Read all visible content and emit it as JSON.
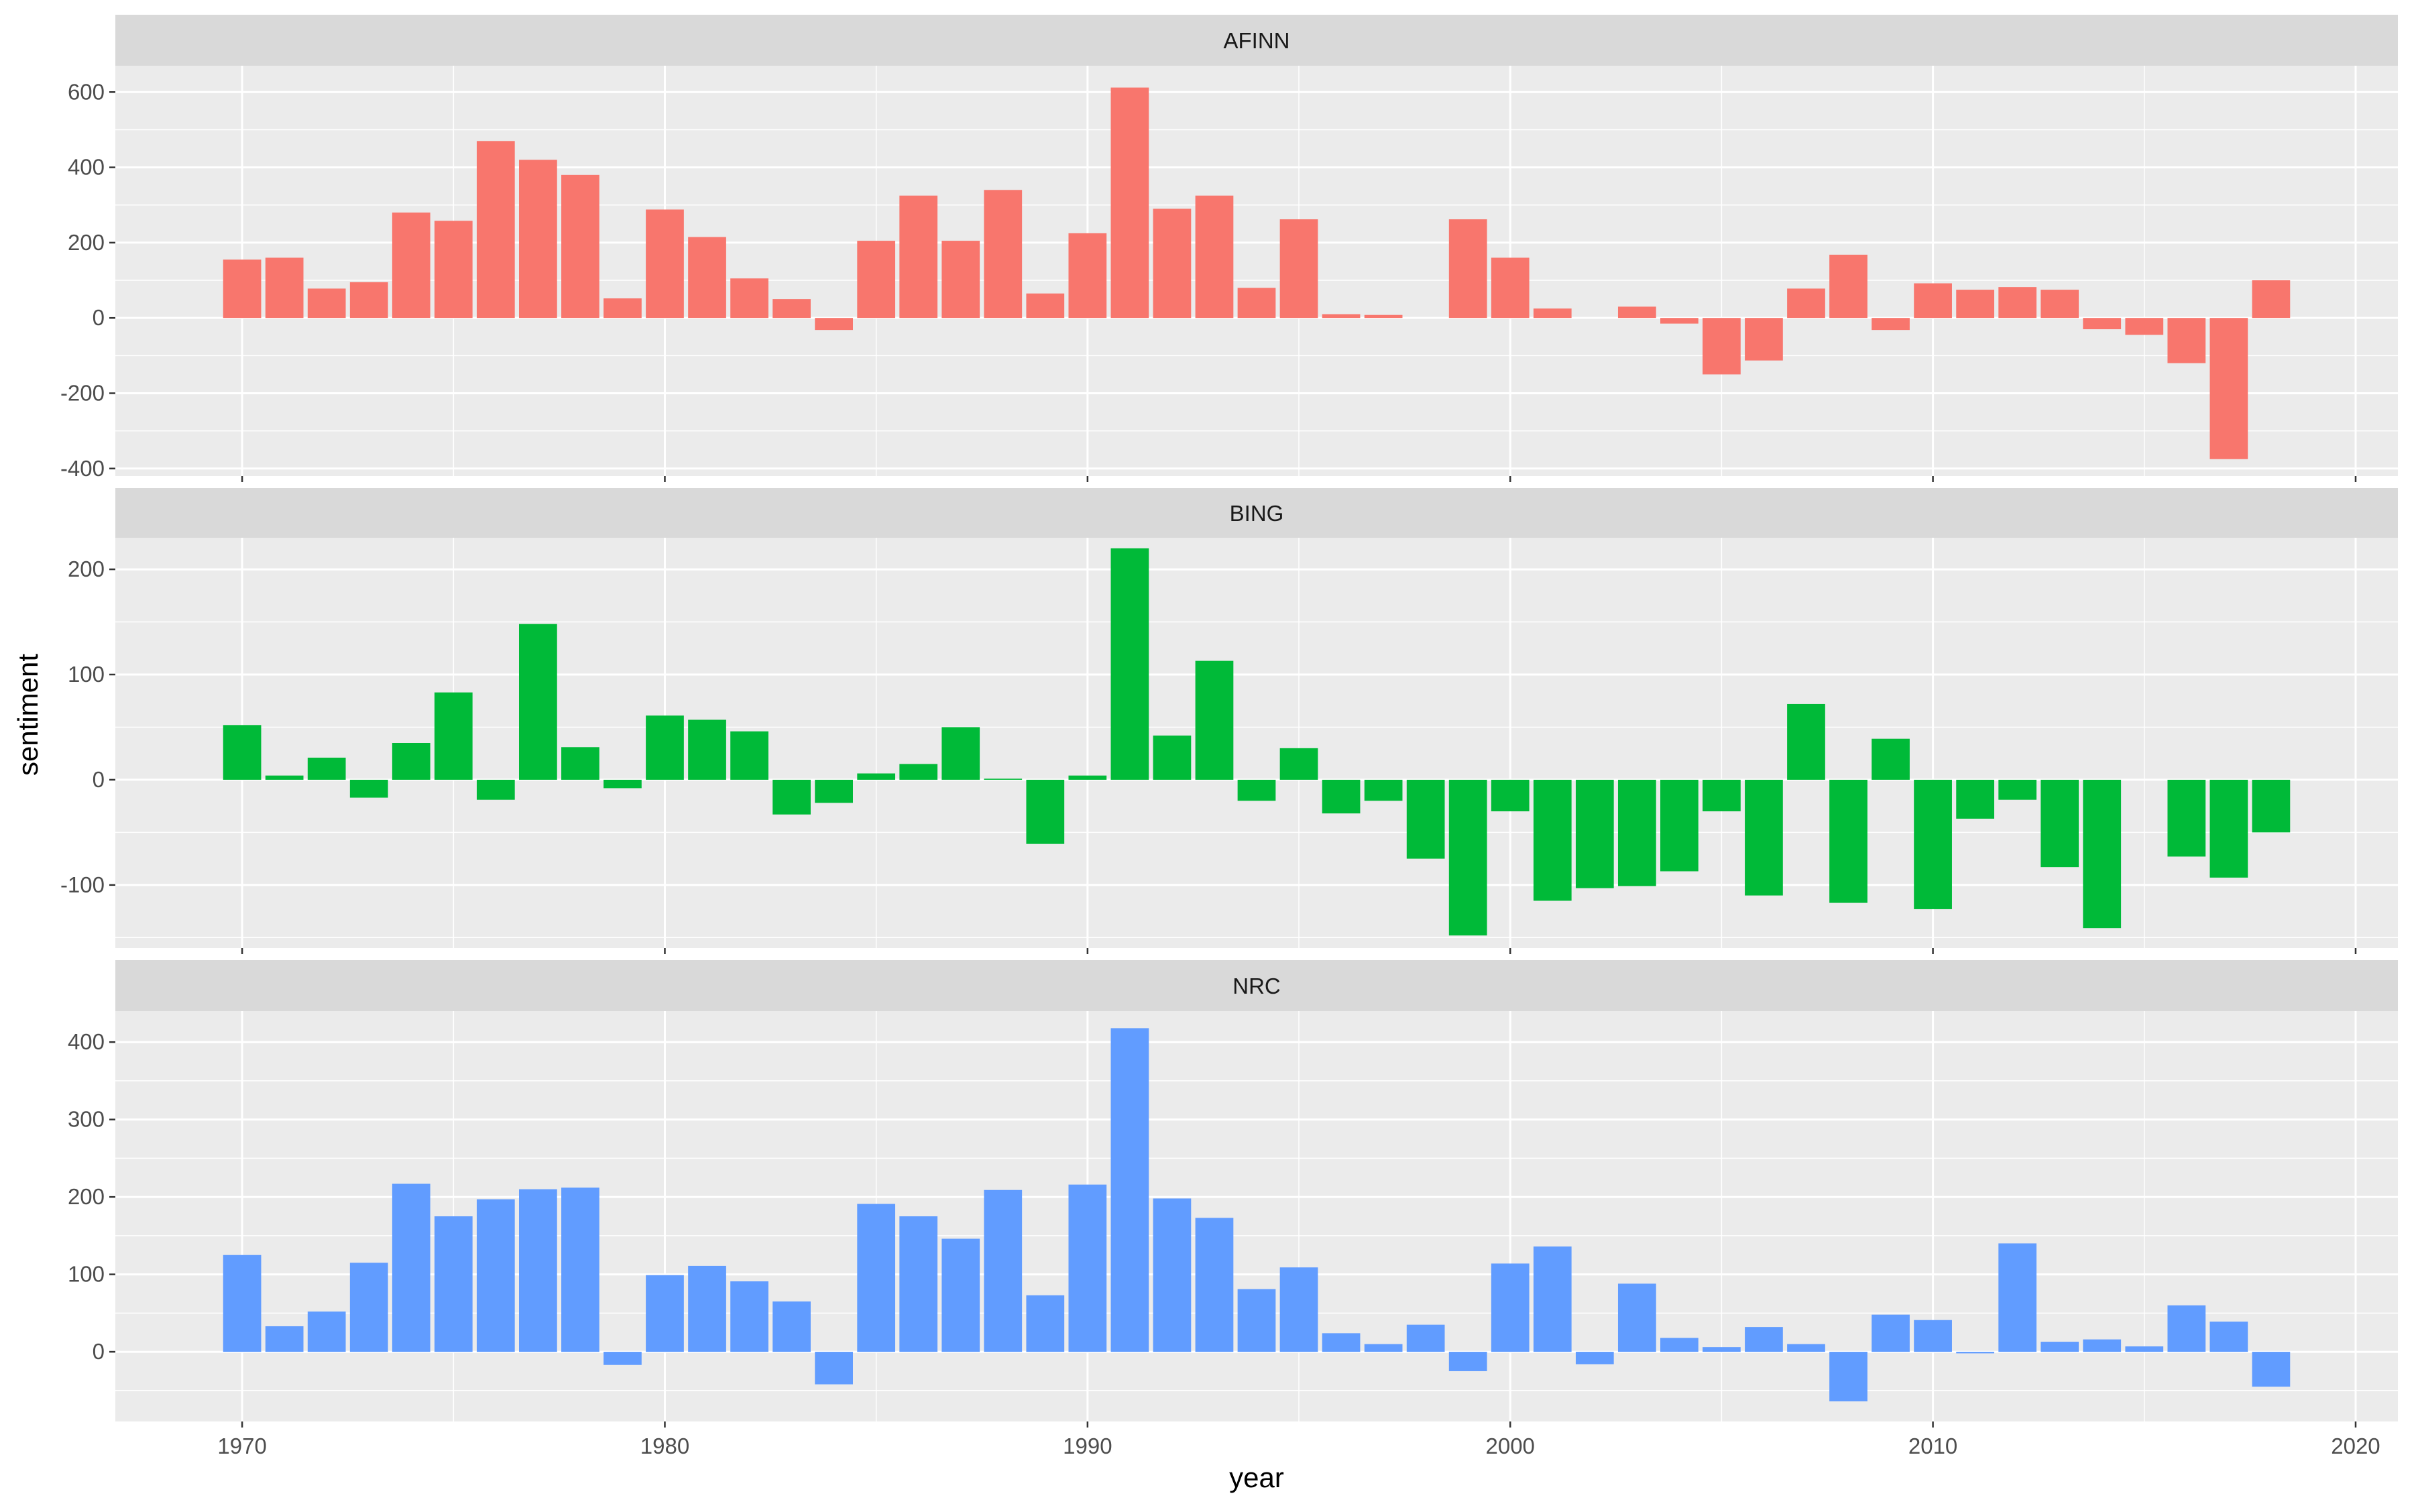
{
  "chart_data": {
    "type": "bar",
    "facet": "vertical",
    "xlabel": "year",
    "ylabel": "sentiment",
    "x_ticks": [
      1970,
      1980,
      1990,
      2000,
      2010,
      2020
    ],
    "xlim": [
      1967,
      2021
    ],
    "years": [
      1970,
      1971,
      1972,
      1973,
      1974,
      1975,
      1976,
      1977,
      1978,
      1979,
      1980,
      1981,
      1982,
      1983,
      1984,
      1985,
      1986,
      1987,
      1988,
      1989,
      1990,
      1991,
      1992,
      1993,
      1994,
      1995,
      1996,
      1997,
      1998,
      1999,
      2000,
      2001,
      2002,
      2003,
      2004,
      2005,
      2006,
      2007,
      2008,
      2009,
      2010,
      2011,
      2012,
      2013,
      2014,
      2015,
      2016,
      2017,
      2018
    ],
    "grid": true,
    "panels": [
      {
        "name": "AFINN",
        "color": "#F8766D",
        "ylim": [
          -420,
          670
        ],
        "y_ticks": [
          -400,
          -200,
          0,
          200,
          400,
          600
        ],
        "values": [
          155,
          160,
          78,
          95,
          280,
          258,
          470,
          420,
          380,
          52,
          288,
          215,
          105,
          50,
          -32,
          205,
          325,
          205,
          340,
          65,
          225,
          612,
          290,
          325,
          80,
          262,
          10,
          8,
          0,
          262,
          160,
          25,
          0,
          30,
          -15,
          -150,
          -113,
          78,
          168,
          -32,
          92,
          75,
          82,
          75,
          -30,
          -45,
          -120,
          -375,
          100
        ]
      },
      {
        "name": "BING",
        "color": "#00BA38",
        "ylim": [
          -160,
          230
        ],
        "y_ticks": [
          -100,
          0,
          100,
          200
        ],
        "values": [
          52,
          4,
          21,
          -17,
          35,
          83,
          -19,
          148,
          31,
          -8,
          61,
          57,
          46,
          -33,
          -22,
          6,
          15,
          50,
          1,
          -61,
          4,
          220,
          42,
          113,
          -20,
          30,
          -32,
          -20,
          -75,
          -148,
          -30,
          -115,
          -103,
          -101,
          -87,
          -30,
          -110,
          72,
          -117,
          39,
          -123,
          -37,
          -19,
          -83,
          -141,
          0,
          -73,
          -93,
          -50
        ]
      },
      {
        "name": "NRC",
        "color": "#619CFF",
        "ylim": [
          -90,
          440
        ],
        "y_ticks": [
          0,
          100,
          200,
          300,
          400
        ],
        "values": [
          125,
          33,
          52,
          115,
          217,
          175,
          197,
          210,
          212,
          -17,
          99,
          111,
          91,
          65,
          -42,
          191,
          175,
          146,
          209,
          73,
          216,
          418,
          198,
          173,
          81,
          109,
          24,
          10,
          35,
          -25,
          114,
          136,
          -16,
          88,
          18,
          6,
          32,
          10,
          -64,
          48,
          41,
          -2,
          140,
          13,
          16,
          7,
          60,
          39,
          -45
        ]
      }
    ]
  }
}
